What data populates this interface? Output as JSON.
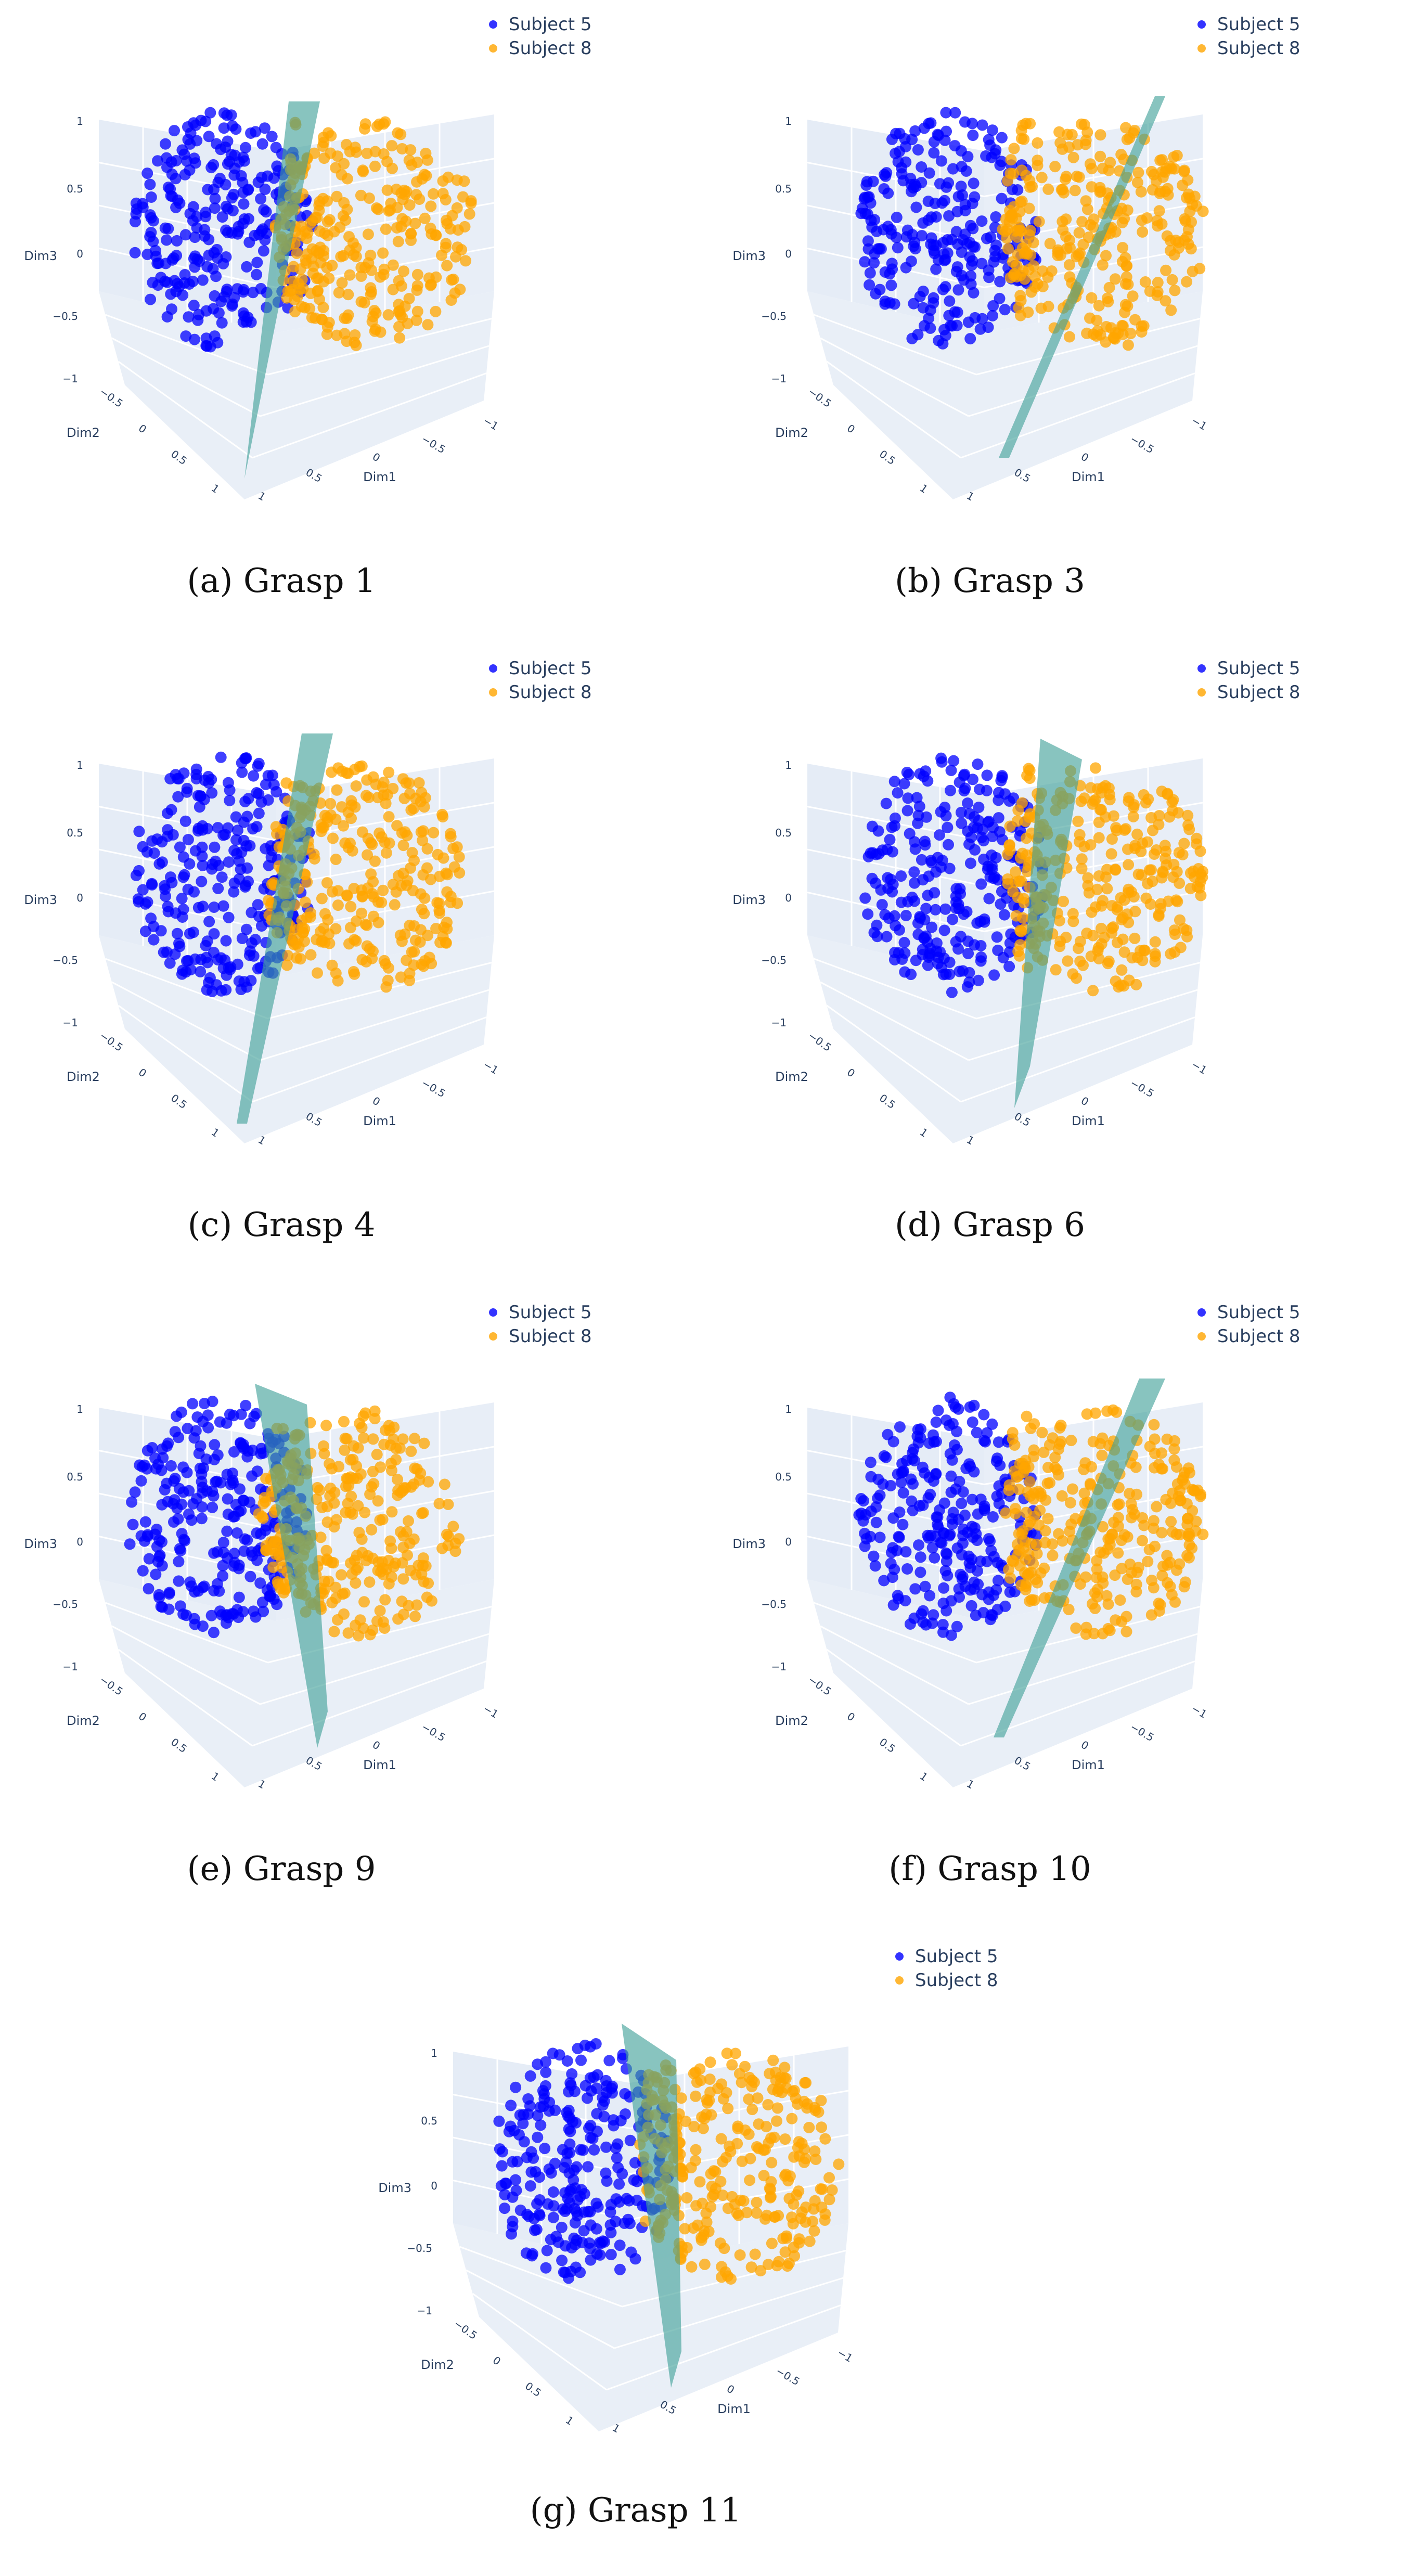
{
  "colors": {
    "subject5": "#0000ff",
    "subject8": "#ffa500",
    "plane": "#3f9f97",
    "scene": "#e5ecf6",
    "grid": "#ffffff",
    "axis_text": "#2a3f5f"
  },
  "legend": {
    "series": [
      "Subject 5",
      "Subject 8"
    ]
  },
  "axis_labels": {
    "x": "Dim1",
    "y": "Dim2",
    "z": "Dim3"
  },
  "tick_labels": [
    "−1",
    "−0.5",
    "0",
    "0.5",
    "1"
  ],
  "panels": [
    {
      "caption": "(a) Grasp 1"
    },
    {
      "caption": "(b) Grasp 3"
    },
    {
      "caption": "(c) Grasp 4"
    },
    {
      "caption": "(d) Grasp 6"
    },
    {
      "caption": "(e) Grasp 9"
    },
    {
      "caption": "(f) Grasp 10"
    },
    {
      "caption": "(g) Grasp 11"
    }
  ],
  "chart_data": [
    {
      "type": "scatter",
      "subtype": "3d-scatter",
      "panel": "(a) Grasp 1",
      "series": [
        {
          "name": "Subject 5",
          "color": "#0000ff"
        },
        {
          "name": "Subject 8",
          "color": "#ffa500"
        }
      ],
      "xlabel": "Dim1",
      "ylabel": "Dim2",
      "zlabel": "Dim3",
      "xlim": [
        -1,
        1
      ],
      "ylim": [
        -1,
        1
      ],
      "zlim": [
        -1,
        1
      ],
      "separating_plane": true,
      "legend": "top-right"
    },
    {
      "type": "scatter",
      "subtype": "3d-scatter",
      "panel": "(b) Grasp 3",
      "series": [
        {
          "name": "Subject 5",
          "color": "#0000ff"
        },
        {
          "name": "Subject 8",
          "color": "#ffa500"
        }
      ],
      "xlabel": "Dim1",
      "ylabel": "Dim2",
      "zlabel": "Dim3",
      "xlim": [
        -1,
        1
      ],
      "ylim": [
        -1,
        1
      ],
      "zlim": [
        -1,
        1
      ],
      "separating_plane": true,
      "legend": "top-right"
    },
    {
      "type": "scatter",
      "subtype": "3d-scatter",
      "panel": "(c) Grasp 4",
      "series": [
        {
          "name": "Subject 5",
          "color": "#0000ff"
        },
        {
          "name": "Subject 8",
          "color": "#ffa500"
        }
      ],
      "xlabel": "Dim1",
      "ylabel": "Dim2",
      "zlabel": "Dim3",
      "xlim": [
        -1,
        1
      ],
      "ylim": [
        -1,
        1
      ],
      "zlim": [
        -1,
        1
      ],
      "separating_plane": true,
      "legend": "top-right"
    },
    {
      "type": "scatter",
      "subtype": "3d-scatter",
      "panel": "(d) Grasp 6",
      "series": [
        {
          "name": "Subject 5",
          "color": "#0000ff"
        },
        {
          "name": "Subject 8",
          "color": "#ffa500"
        }
      ],
      "xlabel": "Dim1",
      "ylabel": "Dim2",
      "zlabel": "Dim3",
      "xlim": [
        -1,
        1
      ],
      "ylim": [
        -1,
        1
      ],
      "zlim": [
        -1,
        1
      ],
      "separating_plane": true,
      "legend": "top-right"
    },
    {
      "type": "scatter",
      "subtype": "3d-scatter",
      "panel": "(e) Grasp 9",
      "series": [
        {
          "name": "Subject 5",
          "color": "#0000ff"
        },
        {
          "name": "Subject 8",
          "color": "#ffa500"
        }
      ],
      "xlabel": "Dim1",
      "ylabel": "Dim2",
      "zlabel": "Dim3",
      "xlim": [
        -1,
        1
      ],
      "ylim": [
        -1,
        1
      ],
      "zlim": [
        -1,
        1
      ],
      "separating_plane": true,
      "legend": "top-right"
    },
    {
      "type": "scatter",
      "subtype": "3d-scatter",
      "panel": "(f) Grasp 10",
      "series": [
        {
          "name": "Subject 5",
          "color": "#0000ff"
        },
        {
          "name": "Subject 8",
          "color": "#ffa500"
        }
      ],
      "xlabel": "Dim1",
      "ylabel": "Dim2",
      "zlabel": "Dim3",
      "xlim": [
        -1,
        1
      ],
      "ylim": [
        -1,
        1
      ],
      "zlim": [
        -1,
        1
      ],
      "separating_plane": true,
      "legend": "top-right"
    },
    {
      "type": "scatter",
      "subtype": "3d-scatter",
      "panel": "(g) Grasp 11",
      "series": [
        {
          "name": "Subject 5",
          "color": "#0000ff"
        },
        {
          "name": "Subject 8",
          "color": "#ffa500"
        }
      ],
      "xlabel": "Dim1",
      "ylabel": "Dim2",
      "zlabel": "Dim3",
      "xlim": [
        -1,
        1
      ],
      "ylim": [
        -1,
        1
      ],
      "zlim": [
        -1,
        1
      ],
      "separating_plane": true,
      "legend": "top-right"
    }
  ]
}
